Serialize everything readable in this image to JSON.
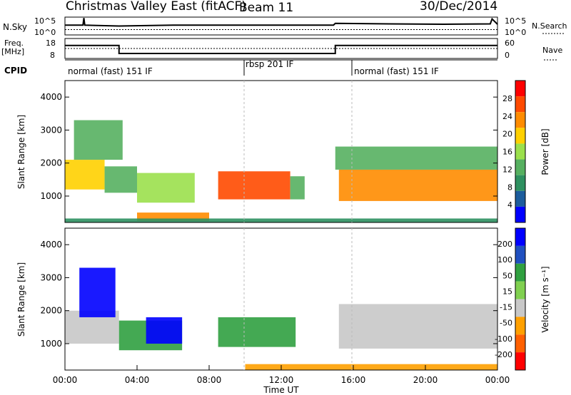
{
  "header": {
    "title": "Christmas Valley East (fitACF)",
    "beam": "Beam 11",
    "date": "30/Dec/2014"
  },
  "chart_data": [
    {
      "type": "line",
      "panel": "noise",
      "left_label": "N.Sky",
      "right_label": "N.Search",
      "left_ticks": [
        "10^5",
        "10^0"
      ],
      "right_ticks": [
        "10^5",
        "10^0"
      ],
      "x": [
        0,
        1.0,
        1.05,
        1.1,
        3,
        6,
        9,
        12,
        14.9,
        15,
        18,
        21,
        23.6,
        23.7,
        24
      ],
      "sky_level": [
        0.55,
        0.55,
        0.95,
        0.55,
        0.5,
        0.55,
        0.55,
        0.55,
        0.55,
        0.65,
        0.62,
        0.6,
        0.62,
        0.9,
        0.6
      ],
      "search_level": [
        0.3,
        0.3,
        0.3,
        0.3,
        0.3,
        0.3,
        0.3,
        0.3,
        0.3,
        0.3,
        0.3,
        0.3,
        0.3,
        0.3,
        0.3
      ]
    },
    {
      "type": "line",
      "panel": "frequency",
      "left_label": "Freq.",
      "left_unit": "[MHz]",
      "right_label": "Nave",
      "left_ticks": [
        "18",
        "8"
      ],
      "right_ticks": [
        "60",
        "0"
      ],
      "x": [
        0,
        3.0,
        3.0,
        15.0,
        15.0,
        24
      ],
      "freq_mhz": [
        14.5,
        14.5,
        10.5,
        10.5,
        14.5,
        14.5
      ],
      "nave": [
        30,
        30,
        30,
        30,
        30,
        30
      ]
    },
    {
      "type": "table",
      "panel": "cpid",
      "label": "CPID",
      "segments": [
        {
          "start": 0,
          "end": 10,
          "name": "normal (fast) 151 IF"
        },
        {
          "start": 10,
          "end": 16,
          "name": "rbsp 201 IF"
        },
        {
          "start": 16,
          "end": 24,
          "name": "normal (fast) 151 IF"
        }
      ]
    },
    {
      "type": "heatmap",
      "panel": "power",
      "ylabel": "Slant Range [km]",
      "xlabel": "",
      "xlim": [
        0,
        24
      ],
      "ylim": [
        200,
        4500
      ],
      "yticks": [
        "1000",
        "2000",
        "3000",
        "4000"
      ],
      "colorbar_label": "Power [dB]",
      "colorbar_ticks": [
        "28",
        "24",
        "20",
        "16",
        "12",
        "8",
        "4"
      ],
      "colorbar_colors": [
        "#ff0000",
        "#ff4a00",
        "#ff8c00",
        "#ffd000",
        "#9be04c",
        "#56b060",
        "#2e9060",
        "#1c5c9c",
        "#0000ff"
      ],
      "echo_bands": [
        {
          "t0": 0.0,
          "t1": 2.2,
          "r0": 1200,
          "r1": 2100,
          "value": 22
        },
        {
          "t0": 0.5,
          "t1": 3.2,
          "r0": 2100,
          "r1": 3300,
          "value": 12
        },
        {
          "t0": 2.2,
          "t1": 4.0,
          "r0": 1100,
          "r1": 1900,
          "value": 14
        },
        {
          "t0": 4.0,
          "t1": 7.2,
          "r0": 800,
          "r1": 1700,
          "value": 16
        },
        {
          "t0": 8.5,
          "t1": 12.5,
          "r0": 900,
          "r1": 1750,
          "value": 28
        },
        {
          "t0": 12.5,
          "t1": 13.3,
          "r0": 900,
          "r1": 1600,
          "value": 12
        },
        {
          "t0": 15.2,
          "t1": 24.0,
          "r0": 850,
          "r1": 1800,
          "value": 26
        },
        {
          "t0": 15.0,
          "t1": 24.0,
          "r0": 1800,
          "r1": 2500,
          "value": 12
        },
        {
          "t0": 4.0,
          "t1": 8.0,
          "r0": 250,
          "r1": 500,
          "value": 24
        },
        {
          "t0": 0.0,
          "t1": 24.0,
          "r0": 200,
          "r1": 320,
          "value": 8
        }
      ]
    },
    {
      "type": "heatmap",
      "panel": "velocity",
      "ylabel": "Slant Range [km]",
      "xlabel": "Time UT",
      "xlim": [
        0,
        24
      ],
      "ylim": [
        200,
        4500
      ],
      "xticks": [
        "00:00",
        "04:00",
        "08:00",
        "12:00",
        "16:00",
        "20:00",
        "00:00"
      ],
      "yticks": [
        "1000",
        "2000",
        "3000",
        "4000"
      ],
      "colorbar_label": "Velocity [m s⁻¹]",
      "colorbar_ticks": [
        "200",
        "100",
        "50",
        "15",
        "-15",
        "-50",
        "-100",
        "-200"
      ],
      "colorbar_colors": [
        "#0000ff",
        "#2050c0",
        "#30a040",
        "#80d050",
        "#c8c8c8",
        "#ffa000",
        "#ff6000",
        "#ff0000"
      ],
      "echo_bands": [
        {
          "t0": 0.0,
          "t1": 3.0,
          "r0": 1000,
          "r1": 2000,
          "value": 0
        },
        {
          "t0": 0.8,
          "t1": 2.8,
          "r0": 1800,
          "r1": 3300,
          "value": 150
        },
        {
          "t0": 3.0,
          "t1": 6.5,
          "r0": 800,
          "r1": 1700,
          "value": 60
        },
        {
          "t0": 4.5,
          "t1": 6.5,
          "r0": 1000,
          "r1": 1800,
          "value": 200
        },
        {
          "t0": 8.5,
          "t1": 12.8,
          "r0": 900,
          "r1": 1800,
          "value": 60
        },
        {
          "t0": 15.2,
          "t1": 24.0,
          "r0": 850,
          "r1": 2200,
          "value": 0
        },
        {
          "t0": 10.0,
          "t1": 24.0,
          "r0": 200,
          "r1": 380,
          "value": -60
        }
      ]
    }
  ]
}
